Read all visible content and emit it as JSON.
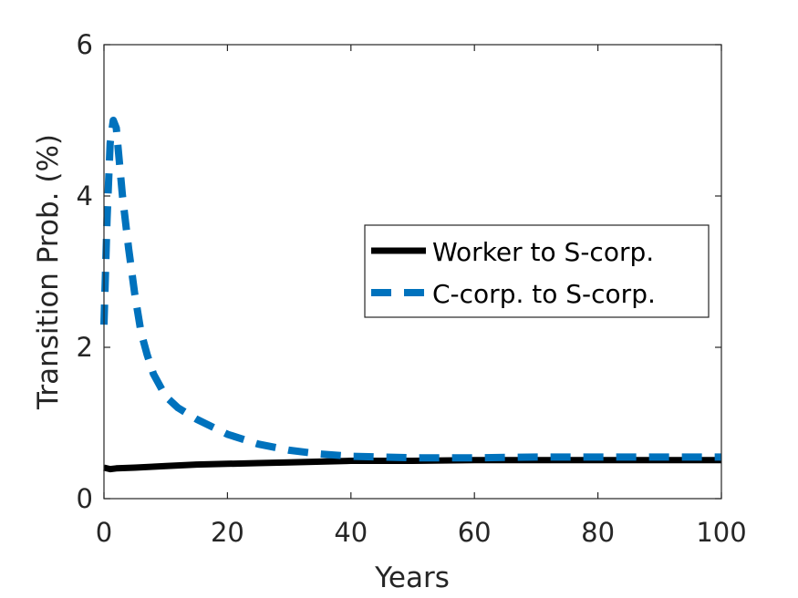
{
  "chart_data": {
    "type": "line",
    "title": "",
    "xlabel": "Years",
    "ylabel": "Transition Prob. (%)",
    "xlim": [
      0,
      100
    ],
    "ylim": [
      0,
      6
    ],
    "xticks": [
      "0",
      "20",
      "40",
      "60",
      "80",
      "100"
    ],
    "yticks": [
      "0",
      "2",
      "4",
      "6"
    ],
    "grid": false,
    "legend": "right",
    "series": [
      {
        "name": "Worker to S-corp.",
        "color": "#000000",
        "style": "solid",
        "x": [
          0,
          1,
          2,
          5,
          10,
          15,
          20,
          25,
          30,
          40,
          50,
          60,
          70,
          80,
          90,
          100
        ],
        "y": [
          0.41,
          0.39,
          0.4,
          0.41,
          0.43,
          0.45,
          0.46,
          0.47,
          0.48,
          0.5,
          0.5,
          0.51,
          0.51,
          0.51,
          0.51,
          0.51
        ]
      },
      {
        "name": "C-corp. to S-corp.",
        "color": "#0072BD",
        "style": "dashed",
        "x": [
          0,
          0.5,
          1,
          1.5,
          2,
          3,
          4,
          5,
          6,
          7,
          8,
          10,
          12,
          15,
          18,
          20,
          25,
          30,
          35,
          40,
          50,
          60,
          70,
          80,
          90,
          100
        ],
        "y": [
          2.3,
          3.7,
          4.7,
          5.0,
          4.9,
          4.0,
          3.3,
          2.7,
          2.2,
          1.9,
          1.65,
          1.35,
          1.2,
          1.05,
          0.93,
          0.85,
          0.72,
          0.64,
          0.59,
          0.56,
          0.54,
          0.54,
          0.55,
          0.55,
          0.55,
          0.55
        ]
      }
    ]
  }
}
